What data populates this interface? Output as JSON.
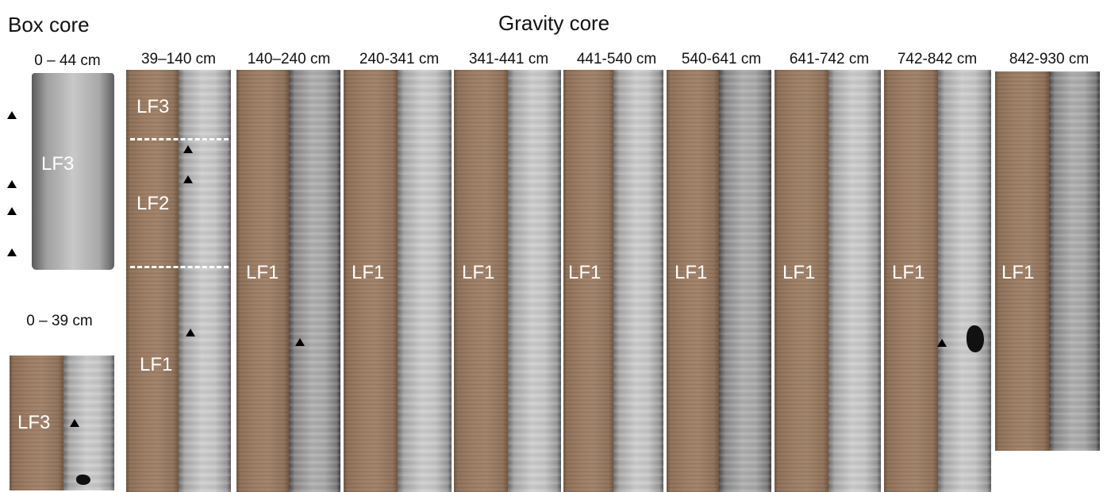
{
  "headers": {
    "box": "Box core",
    "gravity": "Gravity core"
  },
  "box_core": {
    "xray_range": "0 – 44 cm",
    "xray_label": "LF3",
    "photo_range": "0 – 39 cm",
    "photo_label": "LF3"
  },
  "sections": [
    {
      "range": "39–140 cm",
      "labels": [
        "LF3",
        "LF2",
        "LF1"
      ]
    },
    {
      "range": "140–240 cm",
      "label": "LF1"
    },
    {
      "range": "240-341 cm",
      "label": "LF1"
    },
    {
      "range": "341-441 cm",
      "label": "LF1"
    },
    {
      "range": "441-540 cm",
      "label": "LF1"
    },
    {
      "range": "540-641 cm",
      "label": "LF1"
    },
    {
      "range": "641-742 cm",
      "label": "LF1"
    },
    {
      "range": "742-842 cm",
      "label": "LF1"
    },
    {
      "range": "842-930 cm",
      "label": "LF1"
    }
  ],
  "marker_icon": "black-triangle-marker"
}
